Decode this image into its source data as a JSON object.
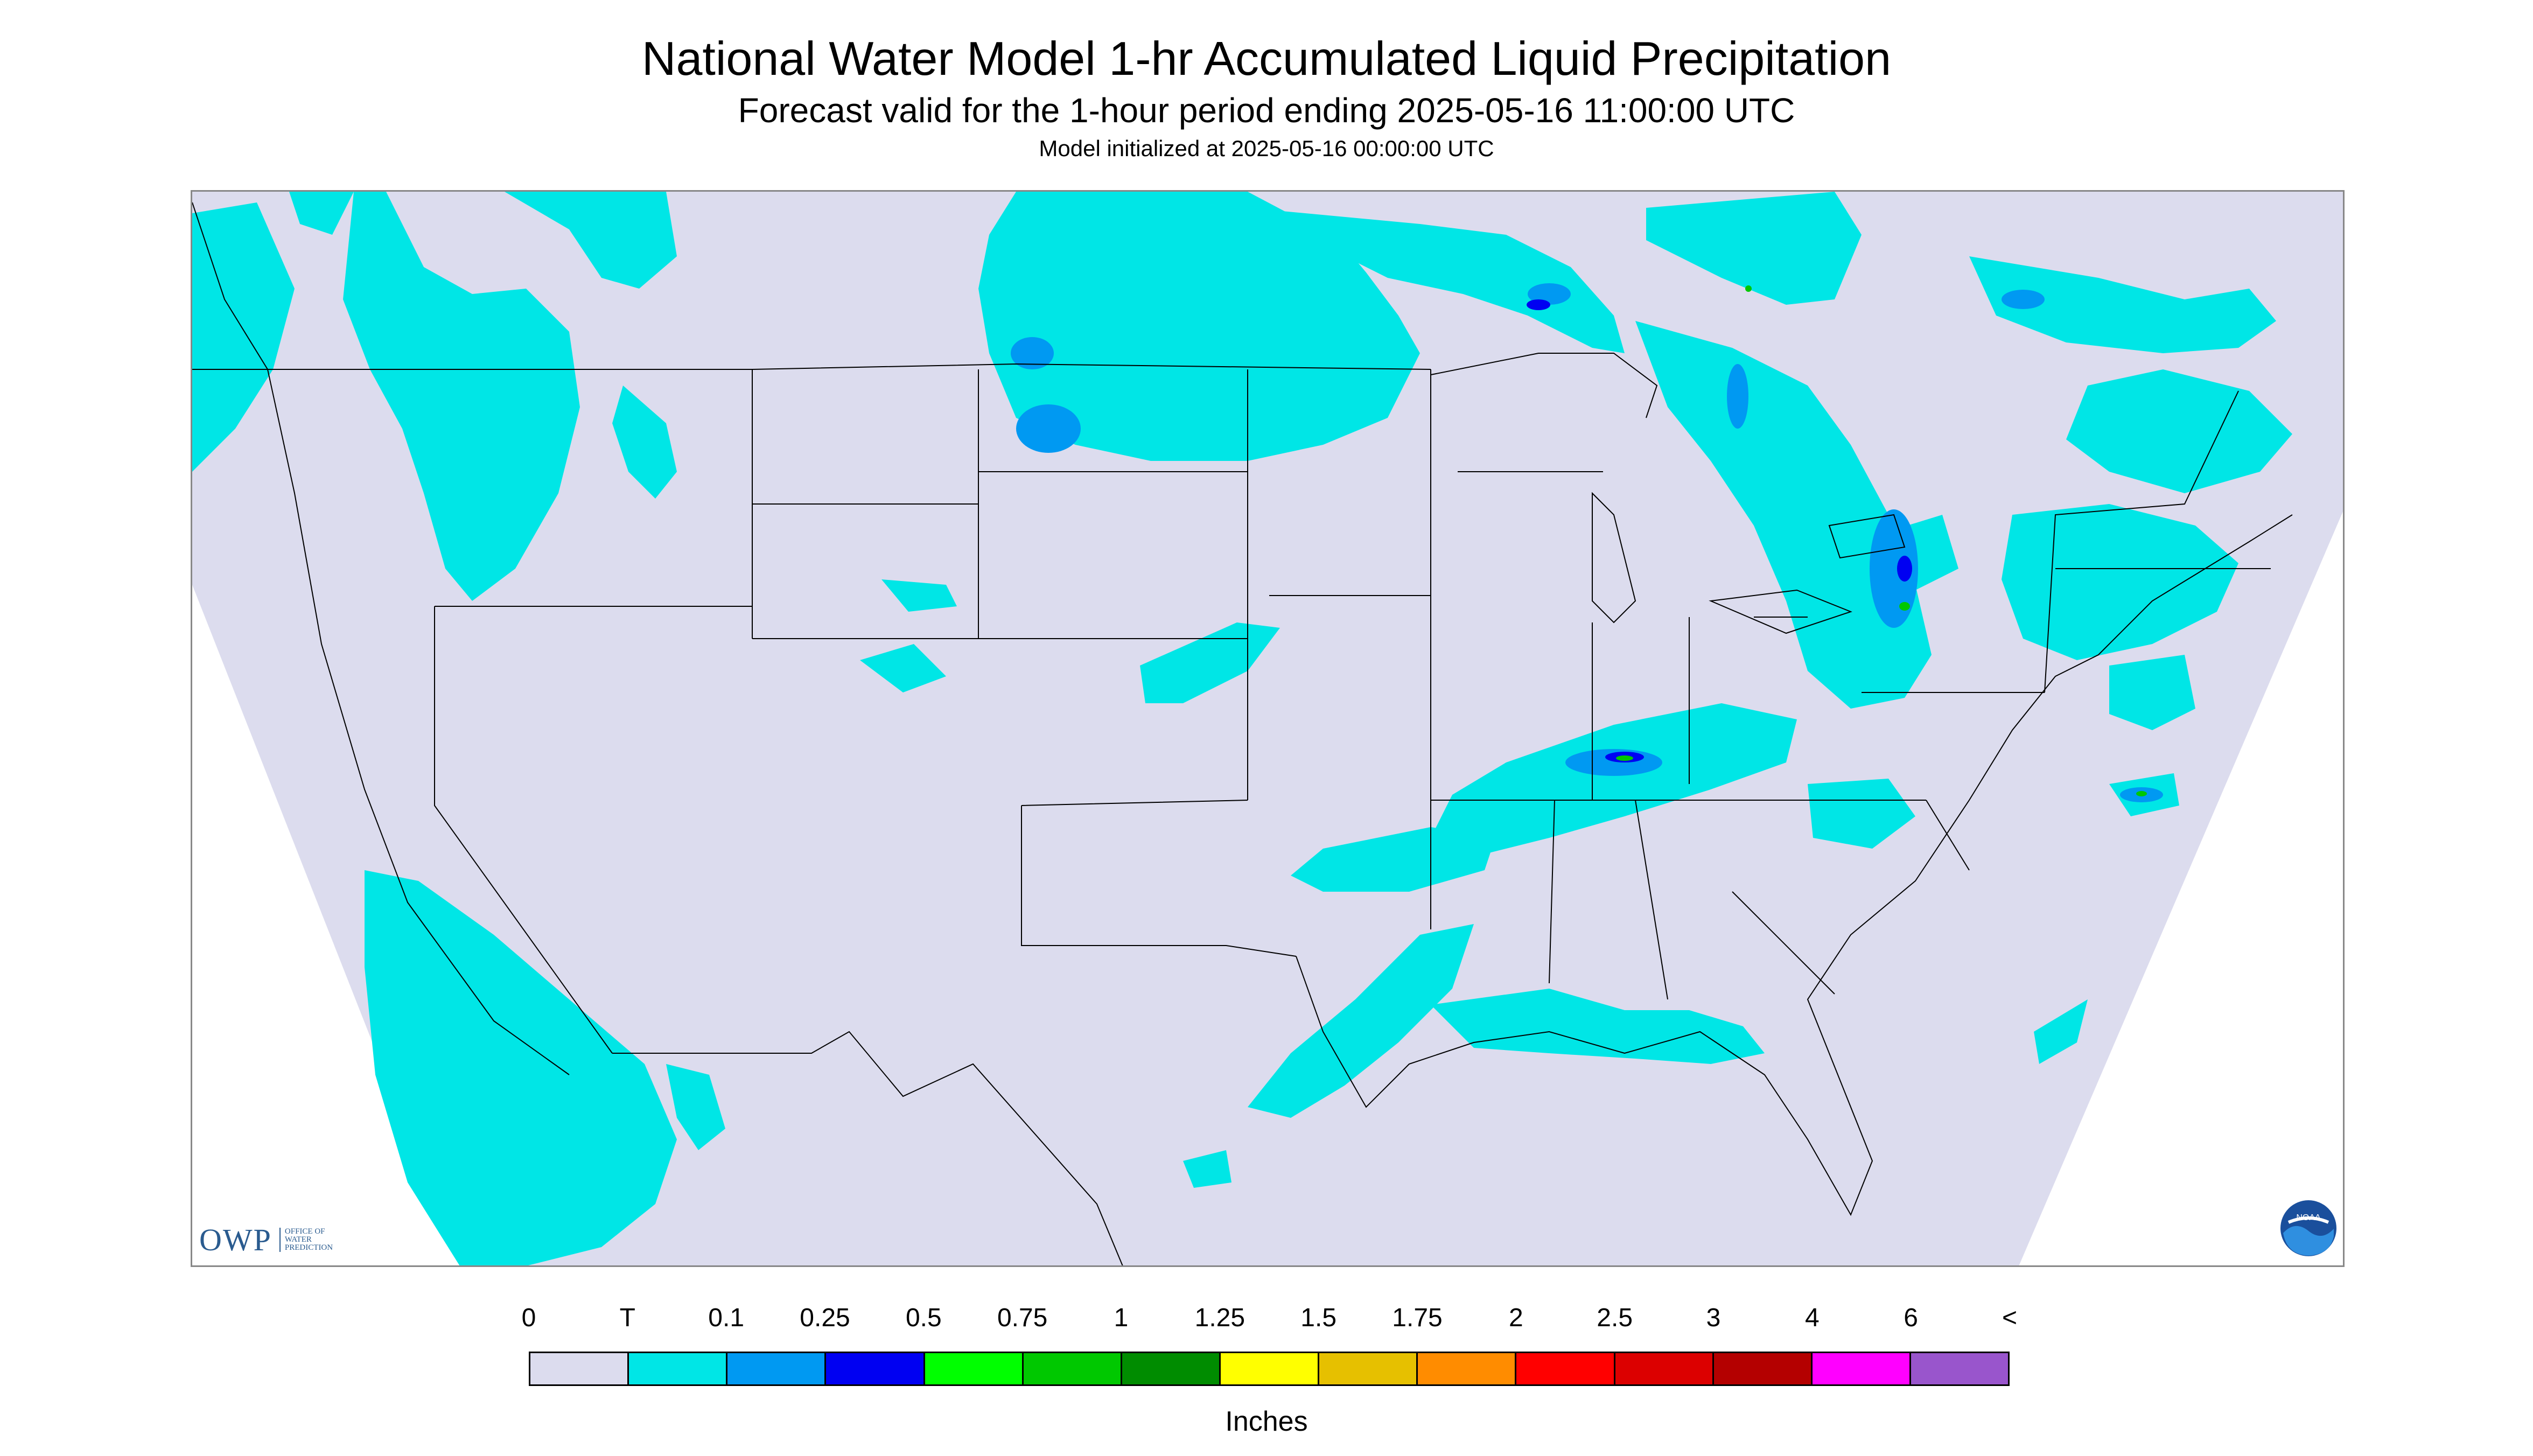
{
  "title": "National Water Model 1-hr Accumulated Liquid Precipitation",
  "subtitle": "Forecast valid for the 1-hour period ending 2025-05-16 11:00:00 UTC",
  "init_line": "Model initialized at 2025-05-16 00:00:00 UTC",
  "logos": {
    "owp_letters": "OWP",
    "owp_sub": [
      "OFFICE OF",
      "WATER",
      "PREDICTION"
    ],
    "noaa": "NOAA"
  },
  "colors": {
    "background": "#dcdcee",
    "no_data": "#ffffff",
    "borders": "#000000"
  },
  "legend": {
    "labels": [
      "0",
      "T",
      "0.1",
      "0.25",
      "0.5",
      "0.75",
      "1",
      "1.25",
      "1.5",
      "1.75",
      "2",
      "2.5",
      "3",
      "4",
      "6",
      "<"
    ],
    "colors": [
      "#dcdcee",
      "#00e6e6",
      "#0099f2",
      "#0000f2",
      "#00ff00",
      "#00c800",
      "#008c00",
      "#ffff00",
      "#e6c000",
      "#ff8c00",
      "#ff0000",
      "#dc0000",
      "#b40000",
      "#ff00ff",
      "#9955cc"
    ],
    "units": "Inches"
  }
}
